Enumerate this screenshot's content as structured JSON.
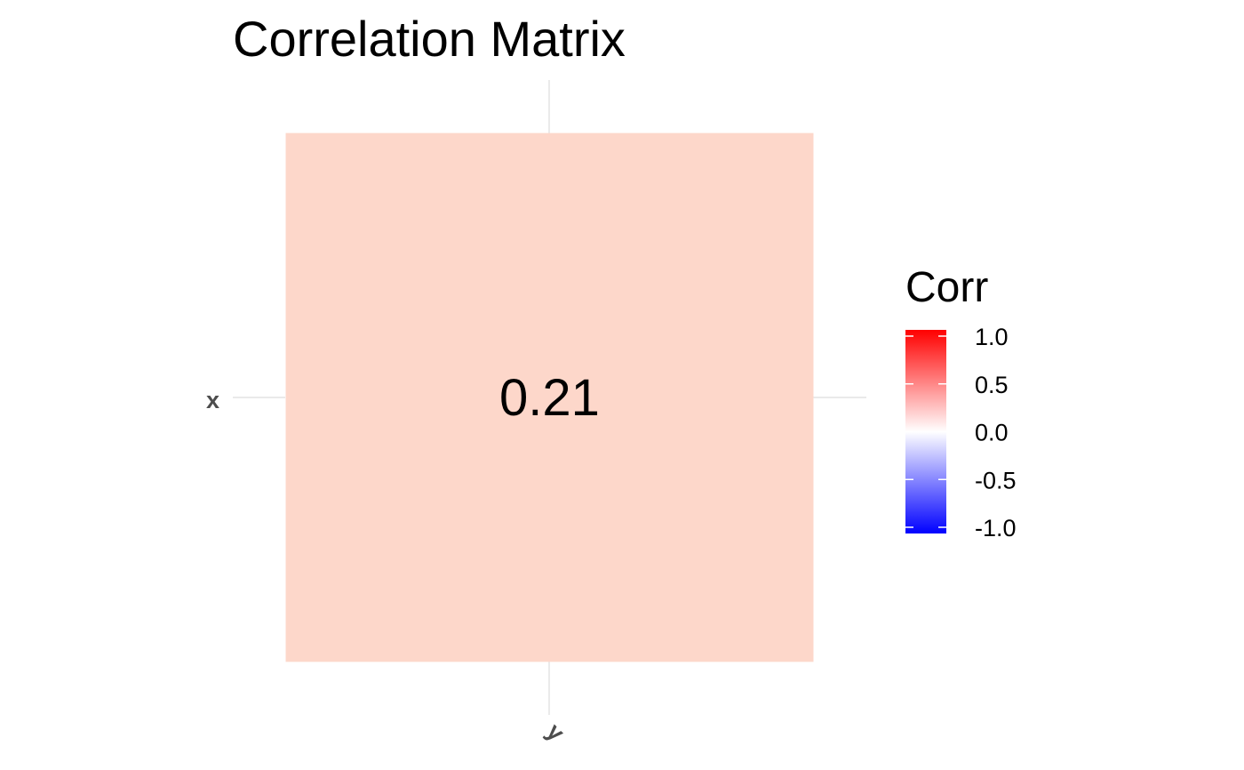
{
  "chart_data": {
    "type": "heatmap",
    "title": "Correlation Matrix",
    "x_categories": [
      "y"
    ],
    "y_categories": [
      "x"
    ],
    "cells": [
      {
        "x": "y",
        "y": "x",
        "value": 0.21,
        "label": "0.21"
      }
    ],
    "legend": {
      "title": "Corr",
      "placement": "right",
      "range": [
        -1.0,
        1.0
      ],
      "breaks": [
        1.0,
        0.5,
        0.0,
        -0.5,
        -1.0
      ],
      "break_labels": [
        "1.0",
        "0.5",
        "0.0",
        "-0.5",
        "-1.0"
      ]
    },
    "color_scale": {
      "low": "#0000ff",
      "mid": "#ffffff",
      "high": "#ff0000"
    },
    "grid": true,
    "x_tick_rotation_deg": 45
  }
}
